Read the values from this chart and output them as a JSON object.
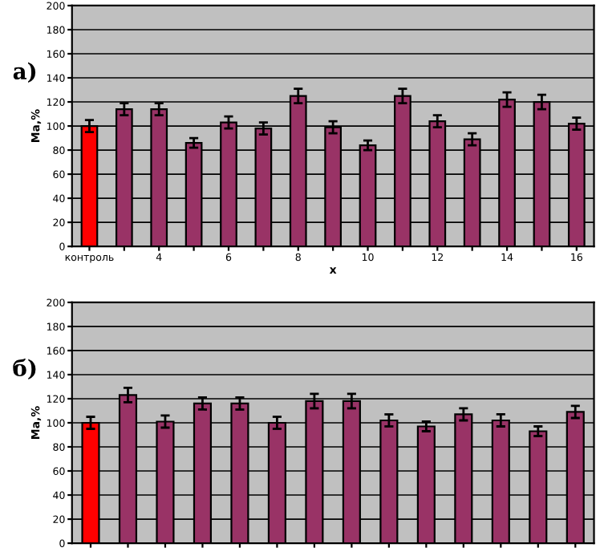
{
  "chart_data": [
    {
      "type": "bar",
      "title": "а)",
      "xlabel": "x",
      "ylabel": "Ma,%",
      "categories": [
        "контроль",
        null,
        "4",
        null,
        "6",
        null,
        "8",
        null,
        "10",
        null,
        "12",
        null,
        "14",
        null,
        "16"
      ],
      "values": [
        100,
        114,
        114,
        86,
        103,
        98,
        125,
        99,
        84,
        125,
        104,
        89,
        122,
        120,
        102
      ],
      "errors": [
        5,
        5,
        5,
        4,
        5,
        5,
        6,
        5,
        4,
        6,
        5,
        5,
        6,
        6,
        5
      ],
      "colors": [
        "#ff0000",
        "#993366",
        "#993366",
        "#993366",
        "#993366",
        "#993366",
        "#993366",
        "#993366",
        "#993366",
        "#993366",
        "#993366",
        "#993366",
        "#993366",
        "#993366",
        "#993366"
      ],
      "ylim": [
        0,
        200
      ],
      "yticks": [
        0,
        20,
        40,
        60,
        80,
        100,
        120,
        140,
        160,
        180,
        200
      ],
      "grid": "y"
    },
    {
      "type": "bar",
      "title": "б)",
      "ylabel": "Ma,%",
      "categories": [
        null,
        null,
        null,
        null,
        null,
        null,
        null,
        null,
        null,
        null,
        null,
        null,
        null,
        null
      ],
      "values": [
        100,
        123,
        101,
        116,
        116,
        100,
        118,
        118,
        102,
        97,
        107,
        102,
        93,
        109
      ],
      "errors": [
        5,
        6,
        5,
        5,
        5,
        5,
        6,
        6,
        5,
        4,
        5,
        5,
        4,
        5
      ],
      "colors": [
        "#ff0000",
        "#993366",
        "#993366",
        "#993366",
        "#993366",
        "#993366",
        "#993366",
        "#993366",
        "#993366",
        "#993366",
        "#993366",
        "#993366",
        "#993366",
        "#993366"
      ],
      "ylim": [
        0,
        200
      ],
      "yticks": [
        0,
        20,
        40,
        60,
        80,
        100,
        120,
        140,
        160,
        180,
        200
      ],
      "grid": "y"
    }
  ]
}
